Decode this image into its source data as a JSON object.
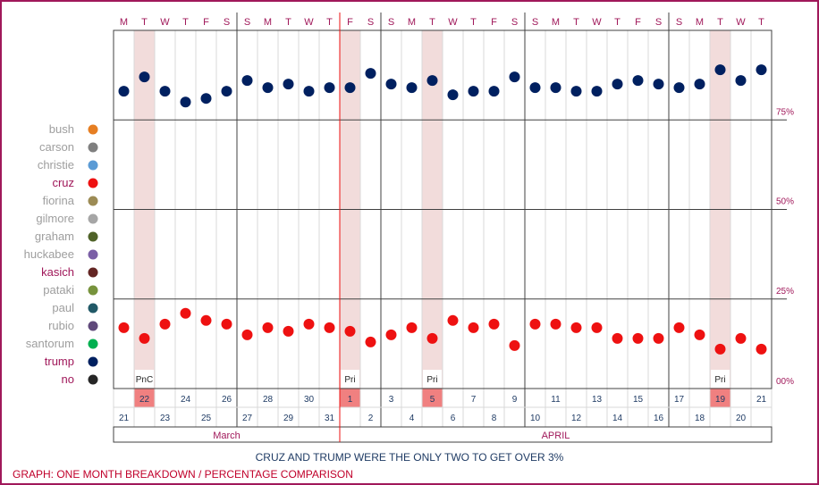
{
  "chart_data": {
    "type": "scatter",
    "day_letters": [
      "M",
      "T",
      "W",
      "T",
      "F",
      "S",
      "S",
      "M",
      "T",
      "W",
      "T",
      "F",
      "S",
      "S",
      "M",
      "T",
      "W",
      "T",
      "F",
      "S",
      "S",
      "M",
      "T",
      "W",
      "T",
      "F",
      "S",
      "S",
      "M",
      "T",
      "W",
      "T"
    ],
    "x": [
      "March 21",
      "March 22",
      "March 23",
      "March 24",
      "March 25",
      "March 26",
      "March 27",
      "March 28",
      "March 29",
      "March 30",
      "March 31",
      "April 1",
      "April 2",
      "April 3",
      "April 4",
      "April 5",
      "April 6",
      "April 7",
      "April 8",
      "April 9",
      "April 10",
      "April 11",
      "April 12",
      "April 13",
      "April 14",
      "April 15",
      "April 16",
      "April 17",
      "April 18",
      "April 19",
      "April 20",
      "April 21"
    ],
    "dates": [
      21,
      22,
      23,
      24,
      25,
      26,
      27,
      28,
      29,
      30,
      31,
      1,
      2,
      3,
      4,
      5,
      6,
      7,
      8,
      9,
      10,
      11,
      12,
      13,
      14,
      15,
      16,
      17,
      18,
      19,
      20,
      21
    ],
    "highlight_dates": [
      22,
      1,
      5,
      19
    ],
    "event_labels": [
      {
        "date": "March 22",
        "label": "PnC"
      },
      {
        "date": "April 1",
        "label": "Pri"
      },
      {
        "date": "April 5",
        "label": "Pri"
      },
      {
        "date": "April 19",
        "label": "Pri"
      }
    ],
    "months": [
      "March",
      "APRIL"
    ],
    "y_ticks": [
      "75%",
      "50%",
      "25%",
      "00%"
    ],
    "ylim": [
      0,
      100
    ],
    "legend": [
      {
        "name": "bush",
        "color": "#e67e22"
      },
      {
        "name": "carson",
        "color": "#7f7f7f"
      },
      {
        "name": "christie",
        "color": "#5b9bd5"
      },
      {
        "name": "cruz",
        "color": "#ee1111"
      },
      {
        "name": "fiorina",
        "color": "#9c8b55"
      },
      {
        "name": "gilmore",
        "color": "#a6a6a6"
      },
      {
        "name": "graham",
        "color": "#4f6228"
      },
      {
        "name": "huckabee",
        "color": "#7b5fa6"
      },
      {
        "name": "kasich",
        "color": "#632523"
      },
      {
        "name": "pataki",
        "color": "#77933c"
      },
      {
        "name": "paul",
        "color": "#215967"
      },
      {
        "name": "rubio",
        "color": "#604a7b"
      },
      {
        "name": "santorum",
        "color": "#00b050"
      },
      {
        "name": "trump",
        "color": "#002060"
      },
      {
        "name": "no",
        "color": "#262626"
      }
    ],
    "legend_emphasis_color": "#a0185a",
    "legend_muted_color": "#9e9e9e",
    "series": [
      {
        "name": "trump",
        "color": "#002060",
        "values": [
          83,
          87,
          83,
          80,
          81,
          83,
          86,
          84,
          85,
          83,
          84,
          84,
          88,
          85,
          84,
          86,
          82,
          83,
          83,
          87,
          84,
          84,
          83,
          83,
          85,
          86,
          85,
          84,
          85,
          89,
          86,
          89
        ]
      },
      {
        "name": "cruz",
        "color": "#ee1111",
        "values": [
          17,
          14,
          18,
          21,
          19,
          18,
          15,
          17,
          16,
          18,
          17,
          16,
          13,
          15,
          17,
          14,
          19,
          17,
          18,
          12,
          18,
          18,
          17,
          17,
          14,
          14,
          14,
          17,
          15,
          11,
          14,
          11
        ]
      }
    ]
  },
  "caption": "CRUZ AND TRUMP WERE THE ONLY TWO TO GET OVER 3%",
  "footer": "GRAPH: ONE MONTH BREAKDOWN / PERCENTAGE COMPARISON"
}
